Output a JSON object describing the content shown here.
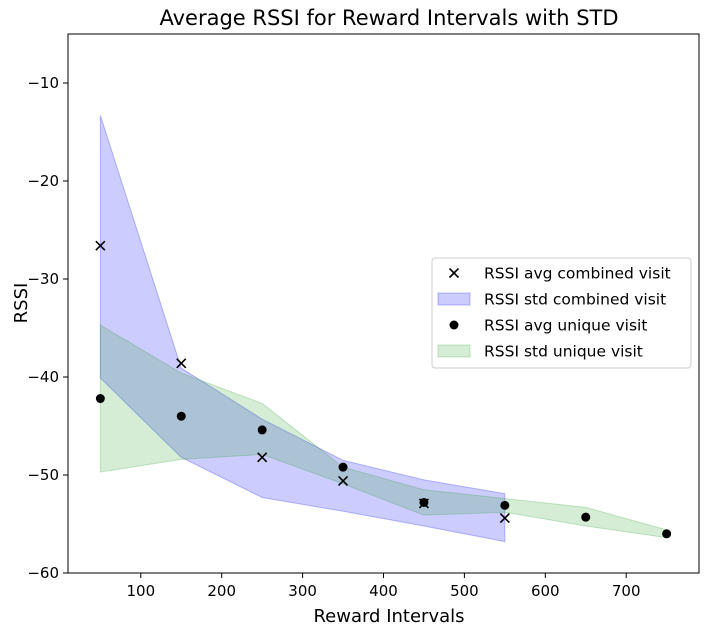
{
  "chart_data": {
    "type": "scatter",
    "title": "Average RSSI for Reward Intervals with STD",
    "xlabel": "Reward Intervals",
    "ylabel": "RSSI",
    "xlim": [
      10,
      790
    ],
    "ylim": [
      -60,
      -5
    ],
    "xticks": [
      100,
      200,
      300,
      400,
      500,
      600,
      700
    ],
    "yticks": [
      -60,
      -50,
      -40,
      -30,
      -20,
      -10
    ],
    "legend_position": "center-right",
    "grid": false,
    "series": [
      {
        "name": "RSSI avg combined visit",
        "kind": "scatter",
        "marker": "x",
        "color": "#000000",
        "x": [
          50,
          150,
          250,
          350,
          450,
          550
        ],
        "y": [
          -26.6,
          -38.6,
          -48.2,
          -50.6,
          -52.9,
          -54.4
        ]
      },
      {
        "name": "RSSI std combined visit",
        "kind": "band",
        "color": "#0000ff",
        "x": [
          50,
          150,
          250,
          350,
          450,
          550
        ],
        "upper": [
          -13.3,
          -39.1,
          -44.3,
          -48.5,
          -50.5,
          -51.9
        ],
        "lower": [
          -40.1,
          -48.2,
          -52.3,
          -53.7,
          -55.2,
          -56.8
        ]
      },
      {
        "name": "RSSI avg unique visit",
        "kind": "scatter",
        "marker": "o",
        "color": "#000000",
        "x": [
          50,
          150,
          250,
          350,
          450,
          550,
          650,
          750
        ],
        "y": [
          -42.2,
          -44.0,
          -45.4,
          -49.2,
          -52.8,
          -53.1,
          -54.3,
          -56.0
        ]
      },
      {
        "name": "RSSI std unique visit",
        "kind": "band",
        "color": "#2ca02c",
        "x": [
          50,
          150,
          250,
          350,
          450,
          550,
          650,
          750
        ],
        "upper": [
          -34.7,
          -39.6,
          -42.7,
          -49.2,
          -51.5,
          -52.4,
          -53.3,
          -55.6
        ],
        "lower": [
          -49.7,
          -48.4,
          -47.9,
          -50.9,
          -54.1,
          -53.8,
          -55.2,
          -56.4
        ]
      }
    ]
  }
}
